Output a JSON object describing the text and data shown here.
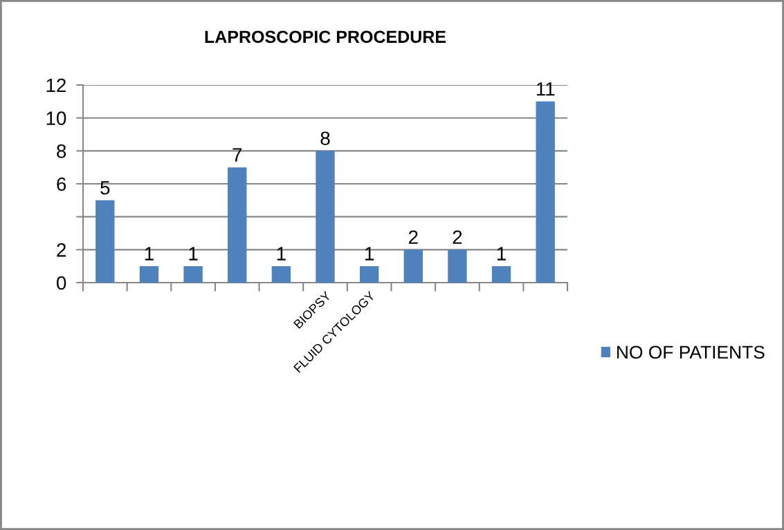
{
  "chart_data": {
    "type": "bar",
    "title": "LAPROSCOPIC PROCEDURE",
    "categories": [
      null,
      null,
      null,
      null,
      null,
      "BIOPSY",
      "FLUID CYTOLOGY",
      null,
      null,
      null,
      null
    ],
    "series": [
      {
        "name": "NO OF PATIENTS",
        "color": "#4f81bd",
        "values": [
          5,
          1,
          1,
          7,
          1,
          8,
          1,
          2,
          2,
          1,
          11
        ]
      }
    ],
    "ylim": [
      0,
      12
    ],
    "yticks": [
      0,
      2,
      {
        "value": 4,
        "label": null
      },
      6,
      8,
      10,
      12
    ],
    "grid": "y",
    "legend": "right",
    "data_labels": true
  }
}
